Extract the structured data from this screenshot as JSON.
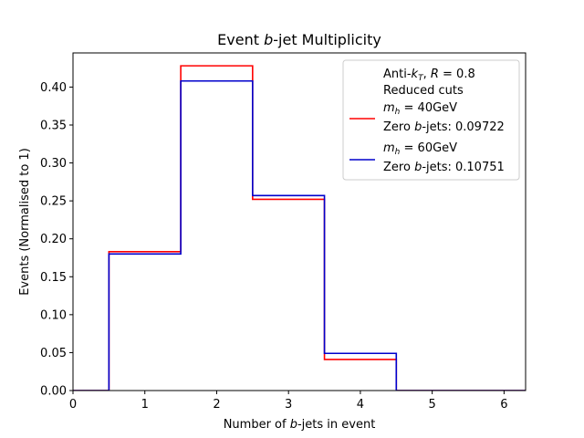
{
  "chart_data": {
    "type": "step",
    "title": "Event b-jet Multiplicity",
    "title_parts": [
      "Event ",
      "b",
      "-jet Multiplicity"
    ],
    "xlabel": "Number of b-jets in event",
    "xlabel_parts": [
      "Number of ",
      "b",
      "-jets in event"
    ],
    "ylabel": "Events (Normalised to 1)",
    "xlim": [
      0,
      6.3
    ],
    "ylim": [
      0,
      0.445
    ],
    "xticks": [
      0,
      1,
      2,
      3,
      4,
      5,
      6
    ],
    "yticks": [
      0.0,
      0.05,
      0.1,
      0.15,
      0.2,
      0.25,
      0.3,
      0.35,
      0.4
    ],
    "bin_edges": [
      -0.5,
      0.5,
      1.5,
      2.5,
      3.5,
      4.5,
      5.5,
      6.5
    ],
    "legend": {
      "placement": "top-right",
      "header_line1": "Anti-kT, R = 0.8",
      "header_line2": "Reduced cuts"
    },
    "series": [
      {
        "name": "m_h = 40GeV",
        "name_math": "m",
        "name_sub": "h",
        "name_rest": " = 40GeV",
        "zero_label": "Zero b-jets: 0.09722",
        "zero_parts": [
          "Zero ",
          "b",
          "-jets: 0.09722"
        ],
        "color": "#ff0000",
        "values": [
          0.0,
          0.183,
          0.428,
          0.252,
          0.041,
          0.0,
          0.0
        ]
      },
      {
        "name": "m_h = 60GeV",
        "name_math": "m",
        "name_sub": "h",
        "name_rest": " = 60GeV",
        "zero_label": "Zero b-jets: 0.10751",
        "zero_parts": [
          "Zero ",
          "b",
          "-jets: 0.10751"
        ],
        "color": "#0000cc",
        "values": [
          0.0,
          0.18,
          0.408,
          0.257,
          0.049,
          0.0,
          0.0
        ]
      }
    ]
  }
}
